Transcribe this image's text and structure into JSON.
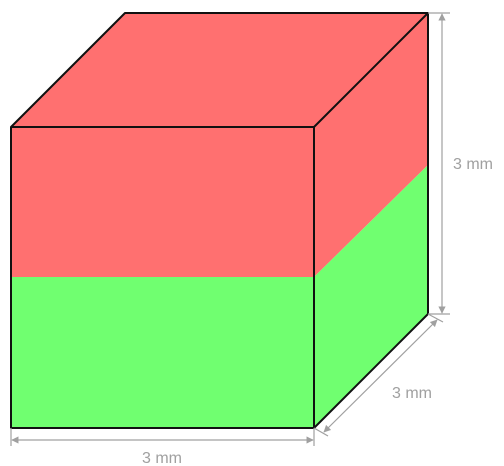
{
  "colors": {
    "top_half": "#ff7070",
    "bottom_half": "#70ff70",
    "edge": "#111111",
    "dimension": "#a0a0a0",
    "background": "#ffffff"
  },
  "dimensions": {
    "width_label": "3 mm",
    "depth_label": "3 mm",
    "height_label": "3 mm"
  }
}
